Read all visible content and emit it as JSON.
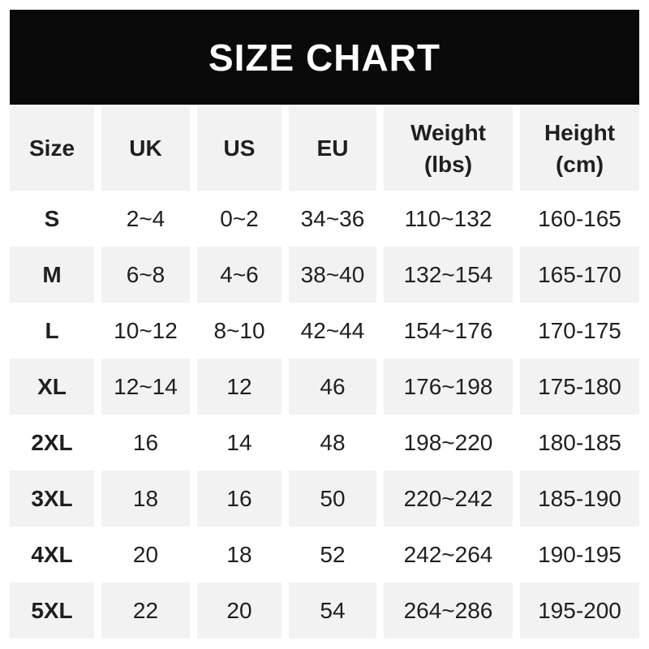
{
  "banner": {
    "title": "SIZE CHART"
  },
  "chart_data": {
    "type": "table",
    "title": "SIZE CHART",
    "columns": [
      {
        "label": "Size"
      },
      {
        "label": "UK"
      },
      {
        "label": "US"
      },
      {
        "label": "EU"
      },
      {
        "label": "Weight",
        "sub": "(lbs)"
      },
      {
        "label": "Height",
        "sub": "(cm)"
      }
    ],
    "rows": [
      [
        "S",
        "2~4",
        "0~2",
        "34~36",
        "110~132",
        "160-165"
      ],
      [
        "M",
        "6~8",
        "4~6",
        "38~40",
        "132~154",
        "165-170"
      ],
      [
        "L",
        "10~12",
        "8~10",
        "42~44",
        "154~176",
        "170-175"
      ],
      [
        "XL",
        "12~14",
        "12",
        "46",
        "176~198",
        "175-180"
      ],
      [
        "2XL",
        "16",
        "14",
        "48",
        "198~220",
        "180-185"
      ],
      [
        "3XL",
        "18",
        "16",
        "50",
        "220~242",
        "185-190"
      ],
      [
        "4XL",
        "20",
        "18",
        "52",
        "242~264",
        "190-195"
      ],
      [
        "5XL",
        "22",
        "20",
        "54",
        "264~286",
        "195-200"
      ]
    ]
  },
  "colors": {
    "banner_bg": "#0a0a0a",
    "banner_text": "#ffffff",
    "stripe_bg": "#f2f2f3",
    "row_bg": "#ffffff",
    "text": "#1f1f22"
  }
}
